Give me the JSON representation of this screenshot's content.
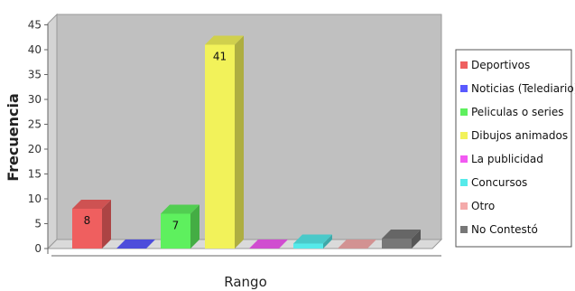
{
  "chart_data": {
    "type": "bar",
    "title": "",
    "xlabel": "Rango",
    "ylabel": "Frecuencia",
    "ylim": [
      0,
      45
    ],
    "yticks": [
      0,
      5,
      10,
      15,
      20,
      25,
      30,
      35,
      40,
      45
    ],
    "grid": false,
    "legend_position": "right",
    "series": [
      {
        "name": "Deportivos",
        "value": 8,
        "color": "#ef5f5f",
        "label": "8"
      },
      {
        "name": "Noticias (Telediario)",
        "value": 0,
        "color": "#5a5aff",
        "label": ""
      },
      {
        "name": "Peliculas o series",
        "value": 7,
        "color": "#5ef05e",
        "label": "7"
      },
      {
        "name": "Dibujos animados",
        "value": 41,
        "color": "#f2f25a",
        "label": "41"
      },
      {
        "name": "La publicidad",
        "value": 0,
        "color": "#f25af2",
        "label": ""
      },
      {
        "name": "Concursos",
        "value": 1,
        "color": "#56eaea",
        "label": ""
      },
      {
        "name": "Otro",
        "value": 0,
        "color": "#f4aaaa",
        "label": ""
      },
      {
        "name": "No Contestó",
        "value": 2,
        "color": "#777777",
        "label": ""
      }
    ]
  }
}
